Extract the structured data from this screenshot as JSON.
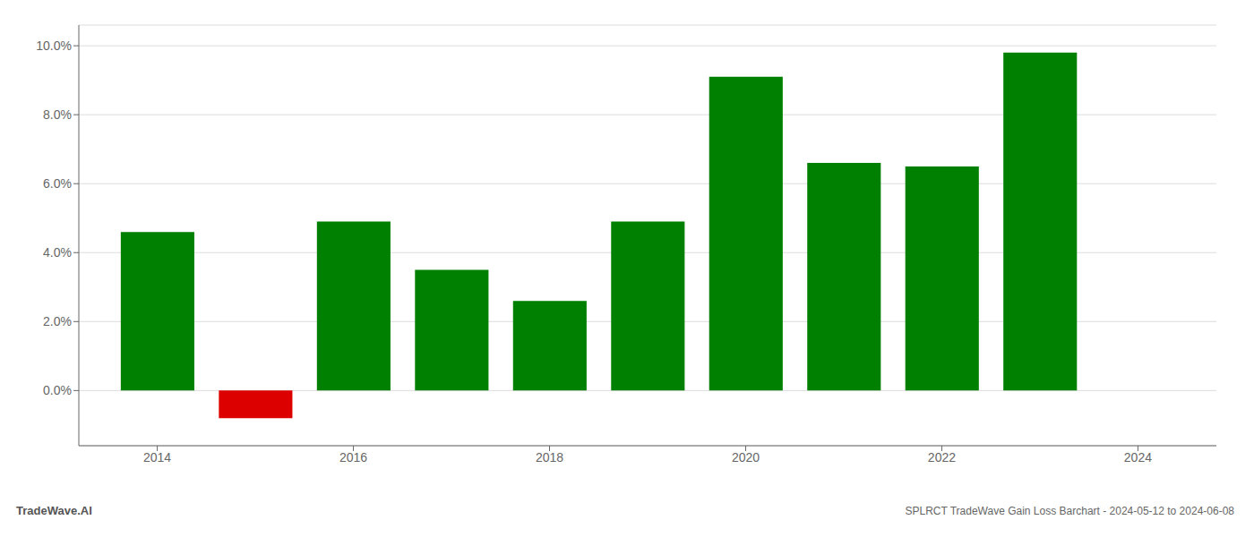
{
  "chart_data": {
    "type": "bar",
    "title": "SPLRCT TradeWave Gain Loss Barchart - 2024-05-12 to 2024-06-08",
    "annotations": [
      "TradeWave.AI"
    ],
    "x": [
      2014,
      2015,
      2016,
      2017,
      2018,
      2019,
      2020,
      2021,
      2022,
      2023
    ],
    "values": [
      0.046,
      -0.008,
      0.049,
      0.035,
      0.026,
      0.049,
      0.091,
      0.066,
      0.065,
      0.098
    ],
    "colors": [
      "#008000",
      "#dd0000",
      "#008000",
      "#008000",
      "#008000",
      "#008000",
      "#008000",
      "#008000",
      "#008000",
      "#008000"
    ],
    "xlim": [
      2013.2,
      2024.8
    ],
    "xticks": [
      2014,
      2016,
      2018,
      2020,
      2022,
      2024
    ],
    "ylim": [
      -0.016,
      0.106
    ],
    "yticks": [
      {
        "value": 0,
        "label": "0.0%"
      },
      {
        "value": 0.02,
        "label": "2.0%"
      },
      {
        "value": 0.04,
        "label": "4.0%"
      },
      {
        "value": 0.06,
        "label": "6.0%"
      },
      {
        "value": 0.08,
        "label": "8.0%"
      },
      {
        "value": 0.1,
        "label": "10.0%"
      }
    ],
    "grid": true
  }
}
